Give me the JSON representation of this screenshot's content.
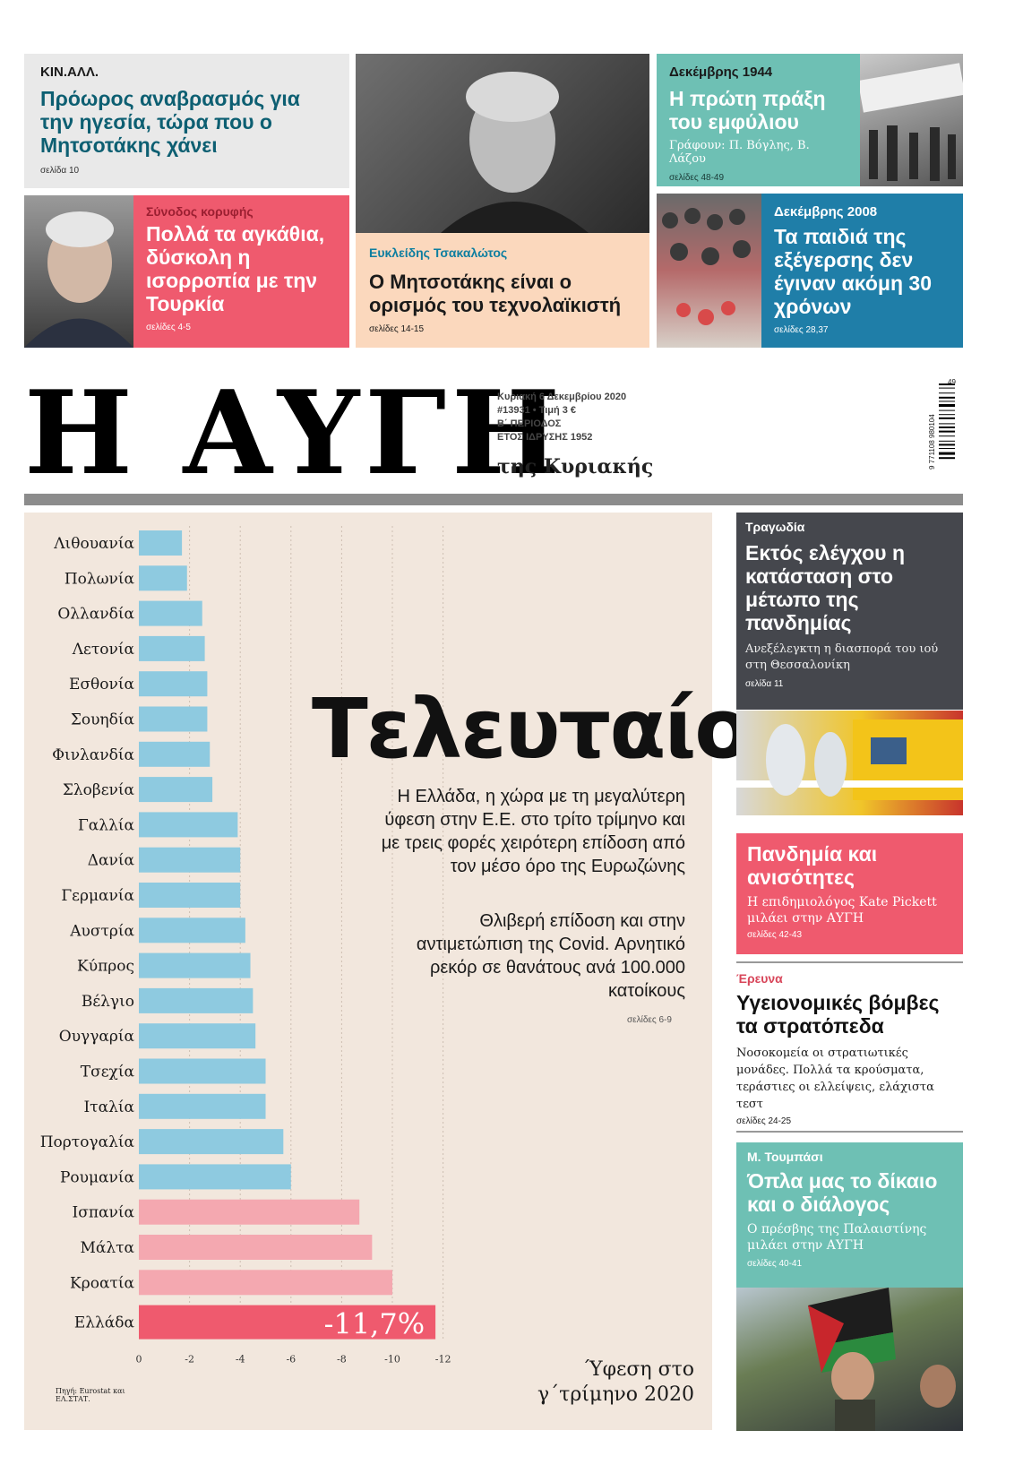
{
  "top": {
    "kinal": {
      "kicker": "ΚΙΝ.ΑΛΛ.",
      "headline": "Πρόωρος αναβρασμός για την ηγεσία, τώρα που ο Μητσοτάκης χάνει",
      "pages": "σελίδα 10"
    },
    "tsakalotos": {
      "kicker": "Ευκλείδης Τσακαλώτος",
      "headline": "Ο Μητσοτάκης είναι ο ορισμός του τεχνολαϊκιστή",
      "pages": "σελίδες 14-15"
    },
    "erdogan": {
      "kicker": "Σύνοδος κορυφής",
      "headline": "Πολλά τα αγκάθια, δύσκολη η ισορροπία με την Τουρκία",
      "pages": "σελίδες 4-5"
    },
    "dec1944": {
      "kicker": "Δεκέμβρης 1944",
      "headline": "Η πρώτη πράξη του εμφύλιου",
      "byline": "Γράφουν: Π. Βόγλης, Β. Λάζου",
      "pages": "σελίδες 48-49"
    },
    "dec2008": {
      "kicker": "Δεκέμβρης 2008",
      "headline": "Τα παιδιά της εξέγερσης δεν έγιναν ακόμη 30 χρόνων",
      "pages": "σελίδες 28,37"
    }
  },
  "masthead": {
    "title": "Η ΑΥΓΗ",
    "subtitle": "της Κυριακής",
    "date": "Κυριακή 6 Δεκεμβρίου 2020",
    "issue": "#13931 • Τιμή 3 €",
    "period": "Β΄ ΠΕΡΙΟΔΟΣ",
    "founded": "ΕΤΟΣ ΙΔΡΥΣΗΣ 1952",
    "barcode_text": "9 771108 980104",
    "barcode_addon": "49"
  },
  "lead": {
    "title": "Τελευταίοι",
    "text1": "Η Ελλάδα, η χώρα με τη μεγαλύτερη ύφεση στην Ε.Ε. στο τρίτο τρίμηνο και με τρεις φορές χειρότερη επίδοση από τον μέσο όρο της Ευρωζώνης",
    "text2": "Θλιβερή επίδοση και στην αντιμετώπιση της Covid. Αρνητικό ρεκόρ σε θανάτους ανά 100.000 κατοίκους",
    "pages": "σελίδες 6-9",
    "caption": "Ύφεση στο γ΄τρίμηνο 2020",
    "source": "Πηγή: Eurostat και ΕΛ.ΣΤΑΤ."
  },
  "chart_data": {
    "type": "bar",
    "orientation": "horizontal",
    "categories": [
      "Λιθουανία",
      "Πολωνία",
      "Ολλανδία",
      "Λετονία",
      "Εσθονία",
      "Σουηδία",
      "Φινλανδία",
      "Σλοβενία",
      "Γαλλία",
      "Δανία",
      "Γερμανία",
      "Αυστρία",
      "Κύπρος",
      "Βέλγιο",
      "Ουγγαρία",
      "Τσεχία",
      "Ιταλία",
      "Πορτογαλία",
      "Ρουμανία",
      "Ισπανία",
      "Μάλτα",
      "Κροατία",
      "Ελλάδα"
    ],
    "values": [
      -1.7,
      -1.9,
      -2.5,
      -2.6,
      -2.7,
      -2.7,
      -2.8,
      -2.9,
      -3.9,
      -4.0,
      -4.0,
      -4.2,
      -4.4,
      -4.5,
      -4.6,
      -5.0,
      -5.0,
      -5.7,
      -6.0,
      -8.7,
      -9.2,
      -10.0,
      -11.7
    ],
    "highlight_label": "-11,7%",
    "xlim": [
      0,
      -12
    ],
    "x_ticks": [
      "0",
      "-2",
      "-4",
      "-6",
      "-8",
      "-10",
      "-12"
    ],
    "colors": {
      "normal": "#8ecae0",
      "worst": "#f4a8b0",
      "greece": "#ef5a6e"
    }
  },
  "right": {
    "tragodia": {
      "kicker": "Τραγωδία",
      "headline": "Εκτός ελέγχου η κατάσταση στο μέτωπο της πανδημίας",
      "sub": "Ανεξέλεγκτη η διασπορά του ιού στη Θεσσαλονίκη",
      "pages": "σελίδα 11"
    },
    "pandemia": {
      "headline": "Πανδημία και ανισότητες",
      "sub": "Η επιδημιολόγος Kate Pickett μιλάει στην ΑΥΓΗ",
      "pages": "σελίδες 42-43"
    },
    "ereuna": {
      "kicker": "Έρευνα",
      "headline": "Υγειονομικές βόμβες τα στρατόπεδα",
      "sub": "Νοσοκομεία οι στρατιωτικές μονάδες. Πολλά τα κρούσματα, τεράστιες οι ελλείψεις, ελάχιστα τεστ",
      "pages": "σελίδες 24-25"
    },
    "toumpasi": {
      "kicker": "Μ. Τουμπάσι",
      "headline": "Όπλα μας το δίκαιο και ο διάλογος",
      "sub": "Ο πρέσβης της Παλαιστίνης μιλάει στην ΑΥΓΗ",
      "pages": "σελίδες 40-41"
    }
  }
}
